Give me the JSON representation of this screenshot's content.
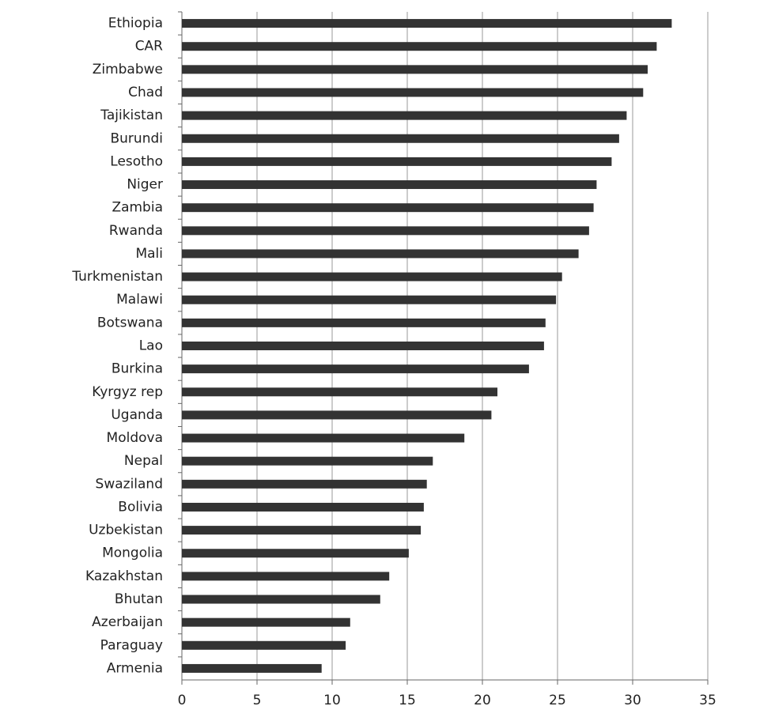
{
  "chart_data": {
    "type": "barh",
    "categories": [
      "Ethiopia",
      "CAR",
      "Zimbabwe",
      "Chad",
      "Tajikistan",
      "Burundi",
      "Lesotho",
      "Niger",
      "Zambia",
      "Rwanda",
      "Mali",
      "Turkmenistan",
      "Malawi",
      "Botswana",
      "Lao",
      "Burkina",
      "Kyrgyz rep",
      "Uganda",
      "Moldova",
      "Nepal",
      "Swaziland",
      "Bolivia",
      "Uzbekistan",
      "Mongolia",
      "Kazakhstan",
      "Bhutan",
      "Azerbaijan",
      "Paraguay",
      "Armenia"
    ],
    "values": [
      32.6,
      31.6,
      31.0,
      30.7,
      29.6,
      29.1,
      28.6,
      27.6,
      27.4,
      27.1,
      26.4,
      25.3,
      24.9,
      24.2,
      24.1,
      23.1,
      21.0,
      20.6,
      18.8,
      16.7,
      16.3,
      16.1,
      15.9,
      15.1,
      13.8,
      13.2,
      11.2,
      10.9,
      9.3
    ],
    "color": "#333333",
    "xlim": [
      0,
      35
    ],
    "xticks": [
      0,
      5,
      10,
      15,
      20,
      25,
      30,
      35
    ],
    "grid": true
  }
}
